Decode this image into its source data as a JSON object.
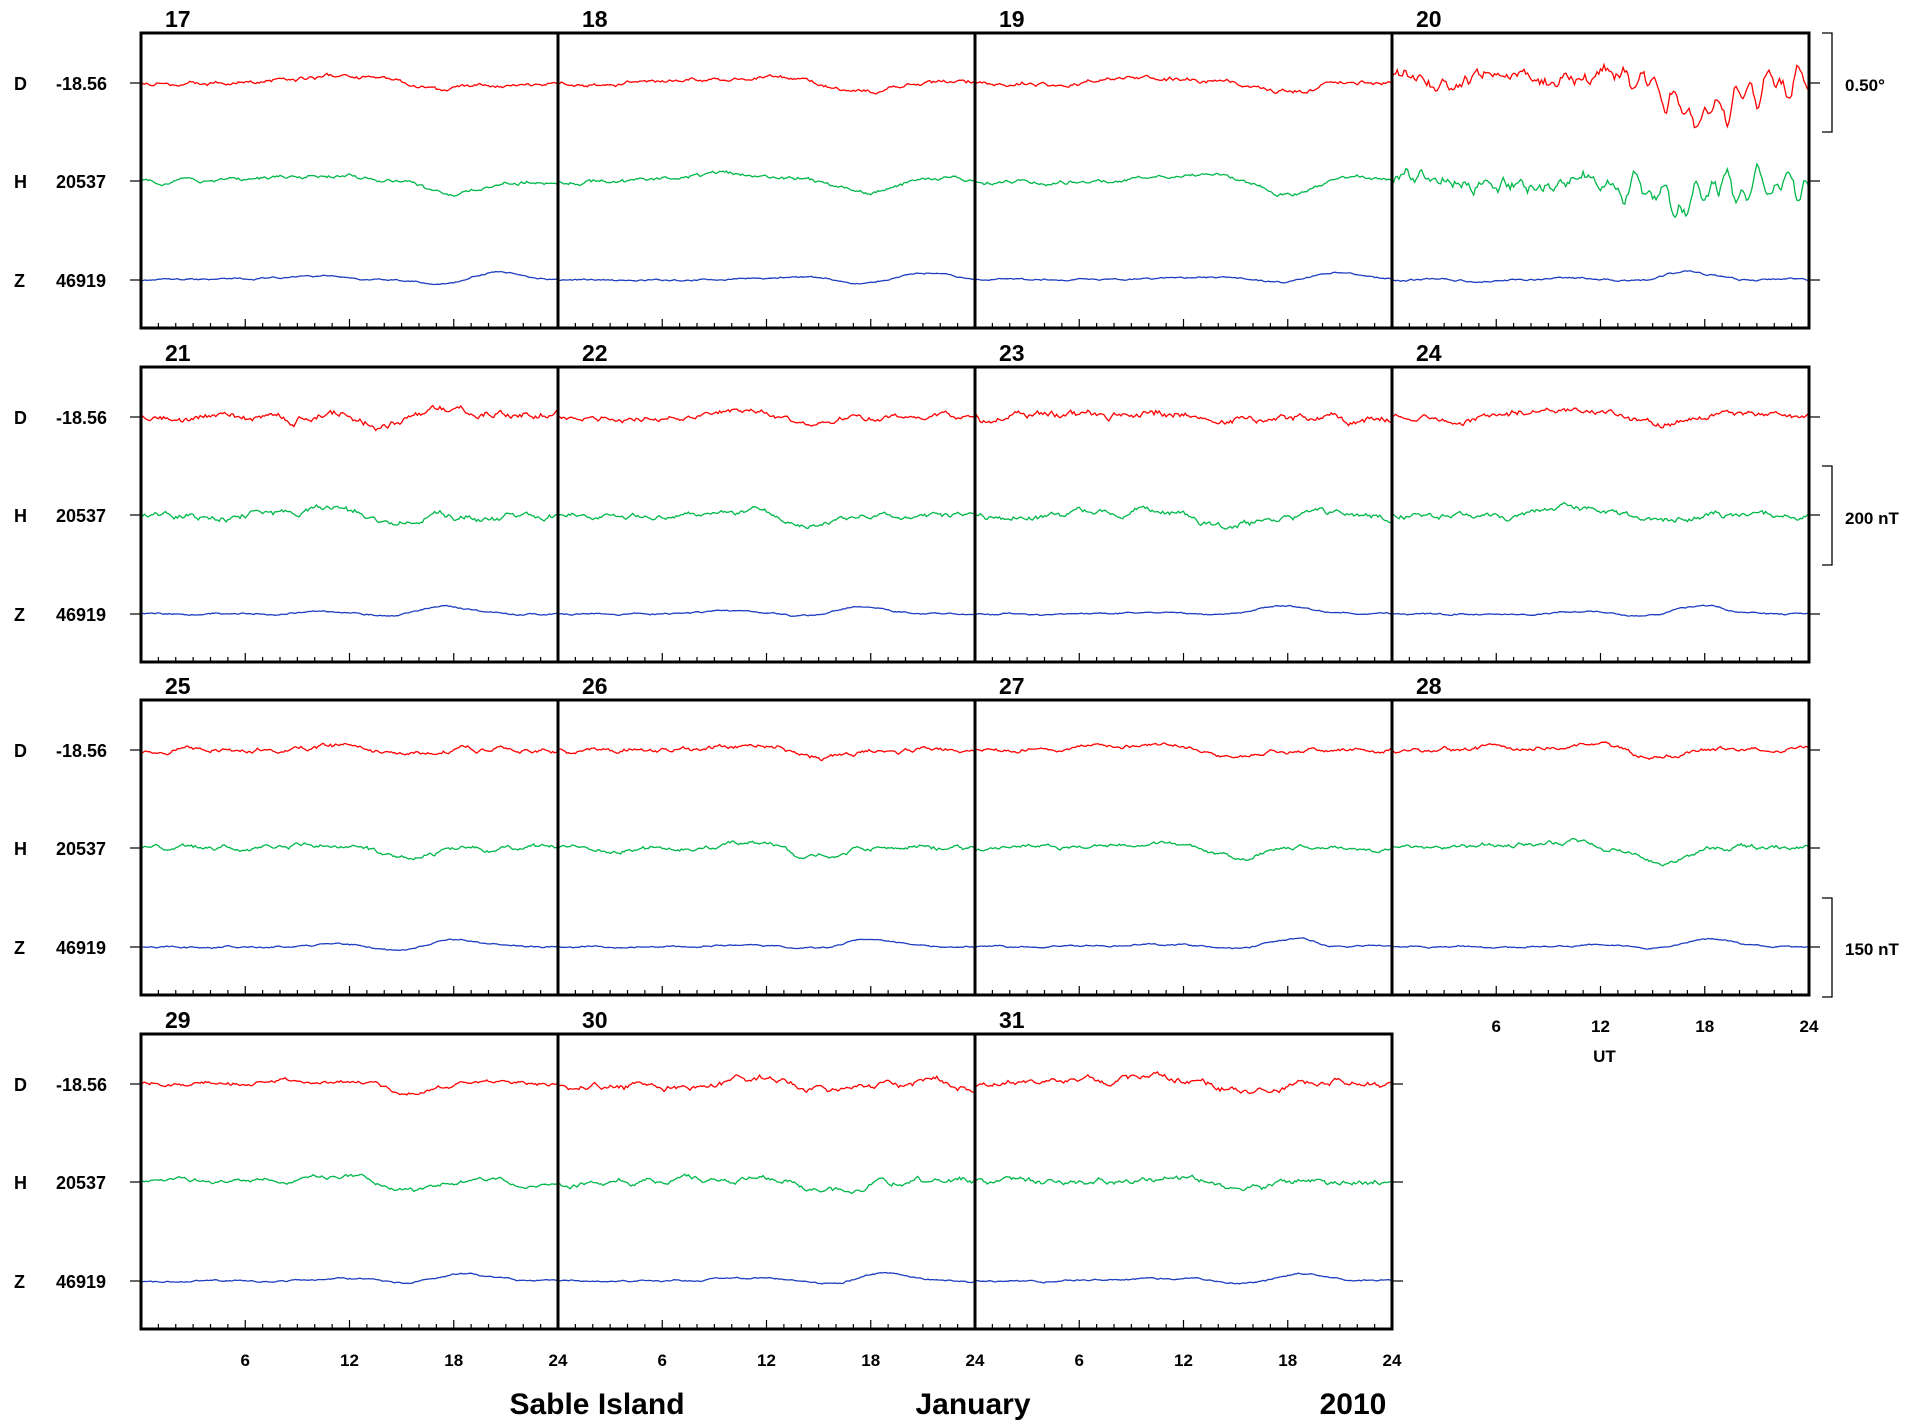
{
  "chart_data": {
    "type": "line",
    "station": "Sable Island",
    "month": "January",
    "year": "2010",
    "x_unit": "UT",
    "x_ticks": [
      "6",
      "12",
      "18",
      "24"
    ],
    "x_range_hours_per_day": [
      0,
      24
    ],
    "grid": false,
    "components": [
      {
        "name": "D",
        "baseline": "-18.56",
        "color": "#ff0000"
      },
      {
        "name": "H",
        "baseline": "20537",
        "color": "#00b84a"
      },
      {
        "name": "Z",
        "baseline": "46919",
        "color": "#1f3fbf"
      }
    ],
    "scale_bars": [
      {
        "label": "0.50°",
        "component": "D"
      },
      {
        "label": "200 nT",
        "component": "H"
      },
      {
        "label": "150 nT",
        "component": "Z"
      }
    ],
    "panels": [
      {
        "days": [
          "17",
          "18",
          "19",
          "20"
        ]
      },
      {
        "days": [
          "21",
          "22",
          "23",
          "24"
        ]
      },
      {
        "days": [
          "25",
          "26",
          "27",
          "28"
        ]
      },
      {
        "days": [
          "29",
          "30",
          "31"
        ]
      }
    ],
    "series_activity": [
      {
        "day": "17",
        "D": 0.15,
        "H": 0.15,
        "Z": 0.05
      },
      {
        "day": "18",
        "D": 0.15,
        "H": 0.15,
        "Z": 0.05
      },
      {
        "day": "19",
        "D": 0.2,
        "H": 0.15,
        "Z": 0.05
      },
      {
        "day": "20",
        "D": 1.0,
        "H": 1.0,
        "Z": 0.1
      },
      {
        "day": "21",
        "D": 0.45,
        "H": 0.35,
        "Z": 0.05
      },
      {
        "day": "22",
        "D": 0.25,
        "H": 0.25,
        "Z": 0.05
      },
      {
        "day": "23",
        "D": 0.45,
        "H": 0.35,
        "Z": 0.05
      },
      {
        "day": "24",
        "D": 0.35,
        "H": 0.3,
        "Z": 0.05
      },
      {
        "day": "25",
        "D": 0.2,
        "H": 0.2,
        "Z": 0.05
      },
      {
        "day": "26",
        "D": 0.2,
        "H": 0.2,
        "Z": 0.05
      },
      {
        "day": "27",
        "D": 0.15,
        "H": 0.15,
        "Z": 0.05
      },
      {
        "day": "28",
        "D": 0.2,
        "H": 0.2,
        "Z": 0.05
      },
      {
        "day": "29",
        "D": 0.15,
        "H": 0.15,
        "Z": 0.05
      },
      {
        "day": "30",
        "D": 0.35,
        "H": 0.3,
        "Z": 0.05
      },
      {
        "day": "31",
        "D": 0.35,
        "H": 0.3,
        "Z": 0.05
      }
    ]
  }
}
